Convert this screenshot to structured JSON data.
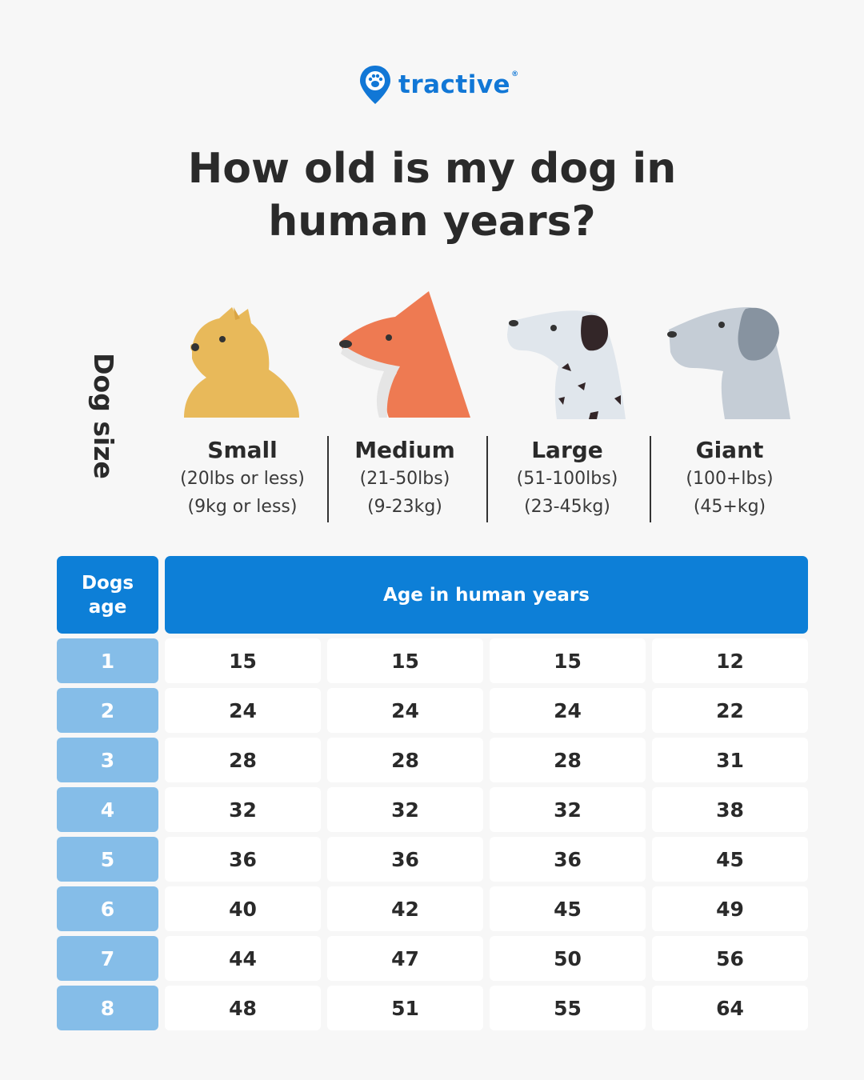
{
  "brand": {
    "name": "tractive",
    "registered_mark": "®",
    "color": "#1177d6"
  },
  "title": {
    "line1": "How old is my dog in",
    "line2": "human years?"
  },
  "dog_size_label": "Dog size",
  "sizes": [
    {
      "name": "Small",
      "lbs": "(20lbs or less)",
      "kg": "(9kg or less)",
      "icon": "small-dog-icon"
    },
    {
      "name": "Medium",
      "lbs": "(21-50lbs)",
      "kg": "(9-23kg)",
      "icon": "medium-dog-icon"
    },
    {
      "name": "Large",
      "lbs": "(51-100lbs)",
      "kg": "(23-45kg)",
      "icon": "large-dog-icon"
    },
    {
      "name": "Giant",
      "lbs": "(100+lbs)",
      "kg": "(45+kg)",
      "icon": "giant-dog-icon"
    }
  ],
  "table": {
    "header_age_line1": "Dogs",
    "header_age_line2": "age",
    "header_human": "Age in human years",
    "rows": [
      {
        "age": "1",
        "values": [
          "15",
          "15",
          "15",
          "12"
        ]
      },
      {
        "age": "2",
        "values": [
          "24",
          "24",
          "24",
          "22"
        ]
      },
      {
        "age": "3",
        "values": [
          "28",
          "28",
          "28",
          "31"
        ]
      },
      {
        "age": "4",
        "values": [
          "32",
          "32",
          "32",
          "38"
        ]
      },
      {
        "age": "5",
        "values": [
          "36",
          "36",
          "36",
          "45"
        ]
      },
      {
        "age": "6",
        "values": [
          "40",
          "42",
          "45",
          "49"
        ]
      },
      {
        "age": "7",
        "values": [
          "44",
          "47",
          "50",
          "56"
        ]
      },
      {
        "age": "8",
        "values": [
          "48",
          "51",
          "55",
          "64"
        ]
      }
    ]
  },
  "colors": {
    "header_blue": "#0d7fd7",
    "age_cell_blue": "#85bde8",
    "small_dog": "#e8b95a",
    "medium_dog": "#ee7a52",
    "large_dog": "#e0e6ec",
    "giant_dog": "#c5cdd6"
  }
}
